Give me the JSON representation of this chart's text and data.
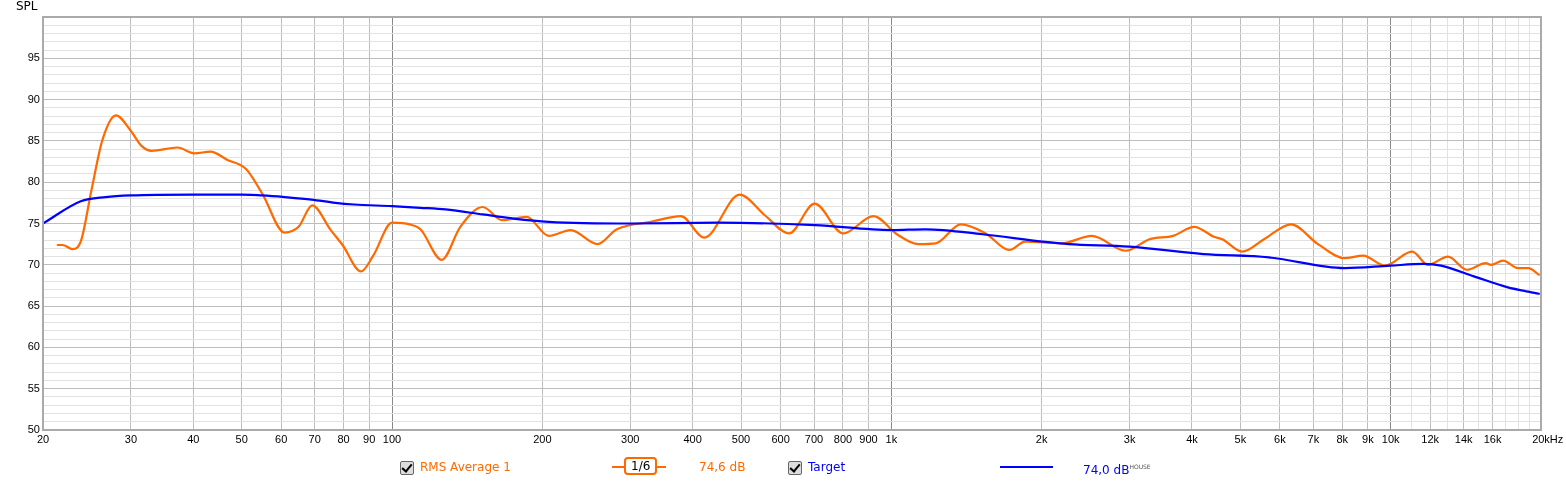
{
  "chart_data": {
    "type": "line",
    "ylabel": "SPL",
    "log": "x",
    "grid": true,
    "legend": "bottom",
    "marker": "none",
    "line_style": "solid",
    "xlim": [
      20,
      20000
    ],
    "ylim": [
      50,
      100
    ],
    "xticks": [
      20,
      30,
      40,
      50,
      60,
      70,
      80,
      90,
      100,
      200,
      300,
      400,
      500,
      600,
      700,
      800,
      900,
      {
        "value": 1000,
        "label": "1k"
      },
      {
        "value": 2000,
        "label": "2k"
      },
      {
        "value": 3000,
        "label": "3k"
      },
      {
        "value": 4000,
        "label": "4k"
      },
      {
        "value": 5000,
        "label": "5k"
      },
      {
        "value": 6000,
        "label": "6k"
      },
      {
        "value": 7000,
        "label": "7k"
      },
      {
        "value": 8000,
        "label": "8k"
      },
      {
        "value": 9000,
        "label": "9k"
      },
      {
        "value": 10000,
        "label": "10k"
      },
      {
        "value": 11000,
        "label": null
      },
      {
        "value": 12000,
        "label": "12k"
      },
      {
        "value": 13000,
        "label": null
      },
      {
        "value": 14000,
        "label": "14k"
      },
      {
        "value": 15000,
        "label": null
      },
      {
        "value": 16000,
        "label": "16k"
      },
      {
        "value": 17000,
        "label": null
      },
      {
        "value": 18000,
        "label": null
      },
      {
        "value": 19000,
        "label": null
      },
      {
        "value": 20000,
        "label": "20k"
      }
    ],
    "xlabel": "Hz",
    "yticks": [
      50,
      {
        "value": 51,
        "label": null
      },
      {
        "value": 52,
        "label": null
      },
      {
        "value": 53,
        "label": null
      },
      {
        "value": 54,
        "label": null
      },
      55,
      {
        "value": 56,
        "label": null
      },
      {
        "value": 57,
        "label": null
      },
      {
        "value": 58,
        "label": null
      },
      {
        "value": 59,
        "label": null
      },
      60,
      {
        "value": 61,
        "label": null
      },
      {
        "value": 62,
        "label": null
      },
      {
        "value": 63,
        "label": null
      },
      {
        "value": 64,
        "label": null
      },
      65,
      {
        "value": 66,
        "label": null
      },
      {
        "value": 67,
        "label": null
      },
      {
        "value": 68,
        "label": null
      },
      {
        "value": 69,
        "label": null
      },
      70,
      {
        "value": 71,
        "label": null
      },
      {
        "value": 72,
        "label": null
      },
      {
        "value": 73,
        "label": null
      },
      {
        "value": 74,
        "label": null
      },
      75,
      {
        "value": 76,
        "label": null
      },
      {
        "value": 77,
        "label": null
      },
      {
        "value": 78,
        "label": null
      },
      {
        "value": 79,
        "label": null
      },
      80,
      {
        "value": 81,
        "label": null
      },
      {
        "value": 82,
        "label": null
      },
      {
        "value": 83,
        "label": null
      },
      {
        "value": 84,
        "label": null
      },
      85,
      {
        "value": 86,
        "label": null
      },
      {
        "value": 87,
        "label": null
      },
      {
        "value": 88,
        "label": null
      },
      {
        "value": 89,
        "label": null
      },
      90,
      {
        "value": 91,
        "label": null
      },
      {
        "value": 92,
        "label": null
      },
      {
        "value": 93,
        "label": null
      },
      {
        "value": 94,
        "label": null
      },
      95,
      {
        "value": 96,
        "label": null
      },
      {
        "value": 97,
        "label": null
      },
      {
        "value": 98,
        "label": null
      },
      {
        "value": 99,
        "label": null
      },
      {
        "value": 100,
        "label": null
      }
    ],
    "annotations": [
      "1/6",
      "74,6 dB",
      "74,0 dB$^{HOUSE}$"
    ],
    "series": [
      {
        "name": "RMS Average 1",
        "type": "line",
        "color": "#ff6a00",
        "x": [
          21.4,
          21.9,
          22.9,
          23.8,
          25,
          26.3,
          28,
          30,
          31.5,
          33,
          37.2,
          40.2,
          43.3,
          46.8,
          51,
          55.1,
          60.9,
          65,
          69.2,
          75.4,
          79.6,
          86.7,
          91.7,
          100,
          108.5,
          114,
          125.8,
          137,
          152,
          166,
          186,
          206,
          228,
          258,
          282,
          330,
          379,
          422,
          497,
          558,
          624,
          702,
          801,
          921,
          1026,
          1132,
          1228,
          1378,
          1545,
          1722,
          1854,
          2190,
          2520,
          2949,
          3290,
          3667,
          4040,
          4426,
          4598,
          5040,
          5577,
          6320,
          7150,
          8090,
          8810,
          9735,
          11040,
          11880,
          13030,
          14210,
          15500,
          15880,
          16790,
          17990,
          18870,
          19800
        ],
        "values": [
          72.4,
          72.4,
          71.9,
          72.8,
          79,
          85.1,
          88.1,
          86.2,
          84.4,
          83.8,
          84.2,
          83.5,
          83.7,
          82.7,
          81.6,
          78.5,
          73.9,
          74.6,
          77.2,
          74.2,
          72.4,
          69.2,
          71.1,
          75.1,
          74.9,
          74.3,
          70.6,
          74.6,
          77,
          75.4,
          75.8,
          73.5,
          74.2,
          72.5,
          74.3,
          75.2,
          75.9,
          73.3,
          78.5,
          76,
          73.8,
          77.4,
          73.8,
          75.9,
          73.7,
          72.5,
          72.6,
          74.9,
          73.8,
          71.8,
          72.8,
          72.6,
          73.5,
          71.7,
          73.1,
          73.5,
          74.6,
          73.4,
          73.1,
          71.6,
          73.1,
          74.9,
          72.5,
          70.8,
          71.1,
          69.9,
          71.6,
          70,
          71,
          69.4,
          70.2,
          70,
          70.5,
          69.6,
          69.6,
          68.8
        ]
      },
      {
        "name": "Target",
        "type": "line",
        "color": "#0000ff",
        "x": [
          20,
          23.8,
          26.7,
          30,
          40,
          50,
          55,
          61,
          69,
          77,
          84,
          100,
          114,
          128,
          152,
          175,
          206,
          301,
          450,
          703,
          1000,
          1170,
          1523,
          2009,
          2266,
          2996,
          4218,
          5700,
          8090,
          9970,
          11640,
          12610,
          14680,
          17100,
          19800
        ],
        "values": [
          75,
          77.7,
          78.2,
          78.4,
          78.5,
          78.5,
          78.4,
          78.2,
          77.9,
          77.5,
          77.3,
          77.1,
          76.9,
          76.7,
          76.1,
          75.6,
          75.2,
          75,
          75.1,
          74.8,
          74.2,
          74.3,
          73.7,
          72.8,
          72.5,
          72.2,
          71.3,
          70.9,
          69.6,
          69.9,
          70.1,
          69.9,
          68.6,
          67.3,
          66.5
        ]
      }
    ]
  }
}
